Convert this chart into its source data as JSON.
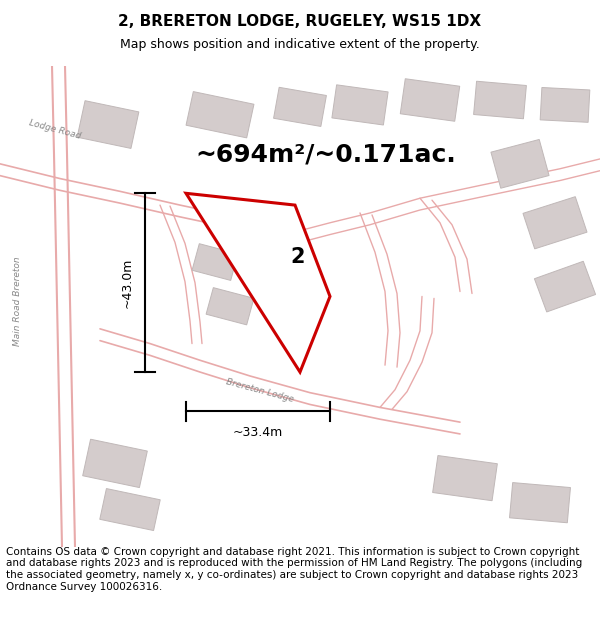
{
  "title": "2, BRERETON LODGE, RUGELEY, WS15 1DX",
  "subtitle": "Map shows position and indicative extent of the property.",
  "footer": "Contains OS data © Crown copyright and database right 2021. This information is subject to Crown copyright and database rights 2023 and is reproduced with the permission of HM Land Registry. The polygons (including the associated geometry, namely x, y co-ordinates) are subject to Crown copyright and database rights 2023 Ordnance Survey 100026316.",
  "area_label": "~694m²/~0.171ac.",
  "plot_number": "2",
  "dim_vertical": "~43.0m",
  "dim_horizontal": "~33.4m",
  "map_bg": "#f2eeee",
  "road_color": "#e8aaaa",
  "building_fill": "#d4cccc",
  "building_edge": "#c0b8b8",
  "plot_fill": "#ffffff",
  "plot_edge": "#cc0000",
  "title_fontsize": 11,
  "subtitle_fontsize": 9,
  "footer_fontsize": 7.5,
  "area_fontsize": 18,
  "dim_fontsize": 9,
  "label_fontsize": 6.5
}
